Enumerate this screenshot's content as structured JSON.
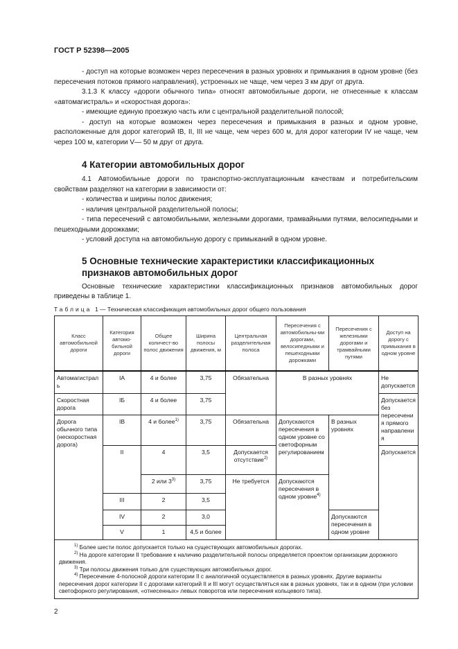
{
  "header": "ГОСТ Р 52398—2005",
  "paragraphs": [
    "- доступ на которые возможен через пересечения в разных уровнях и примыкания в одном уровне (без пересечения потоков прямого направления), устроенных не чаще, чем через 3 км друг от друга.",
    "3.1.3  К классу «дороги обычного типа» относят автомобильные дороги, не отнесенные к классам «автомагистраль» и «скоростная дорога»:",
    "- имеющие единую проезжую часть или с центральной разделительной полосой;",
    "- доступ на которые возможен через пересечения и примыкания в разных и одном уровне, расположенные для дорог категорий IB, II, III не чаще, чем через 600 м, для дорог категории IV не чаще, чем через 100 м, категории V— 50 м друг от друга."
  ],
  "section4": {
    "heading": "4  Категории автомобильных дорог",
    "paragraphs": [
      "4.1 Автомобильные дороги по транспортно-эксплуатационным качествам и потребительским свойствам разделяют на категории в зависимости от:",
      "- количества и ширины полос движения;",
      "- наличия центральной разделительной полосы;",
      "- типа пересечений с автомобильными, железными дорогами, трамвайными путями, велосипедными и пешеходными дорожками;",
      "- условий доступа на автомобильную дорогу с примыканий в одном уровне."
    ]
  },
  "section5": {
    "heading": "5  Основные технические характеристики классификационных признаков автомобильных дорог",
    "paragraph": "Основные технические характеристики классификационных признаков автомобильных дорог приведены в таблице 1."
  },
  "table": {
    "caption_label": "Таблица",
    "caption_text": "1 — Техническая классификация автомобильных дорог общего пользования",
    "headers": [
      "Класс автомобильной дороги",
      "Категория автомо-бильной дороги",
      "Общее количест-во полос движения",
      "Ширина полосы движения, м",
      "Центральная разделительная полоса",
      "Пересечения с автомобильны-ми дорогами, велосипедными и пешеходными дорожками",
      "Пересечения с железными дорогами и трамвайными путями",
      "Доступ на дорогу с примыкания в одном уровне"
    ],
    "rows": [
      [
        {
          "t": "Автомагистраль",
          "a": "l"
        },
        {
          "t": "IA"
        },
        {
          "t": "4 и более"
        },
        {
          "t": "3,75"
        },
        {
          "t": "Обязательна",
          "rs": 2
        },
        {
          "t": "В разных уровнях",
          "cs": 2,
          "rs": 2
        },
        {
          "t": "Не допускается",
          "a": "l"
        }
      ],
      [
        {
          "t": "Скоростная дорога",
          "a": "l"
        },
        {
          "t": "IБ"
        },
        {
          "t": "4 и более"
        },
        {
          "t": "3,75"
        },
        {
          "t": "Допускается без пересечения прямого направления",
          "a": "l",
          "rs": 2
        }
      ],
      [
        {
          "t": "Дорога обычного типа (нескоростная дорога)",
          "a": "l",
          "rs": 6
        },
        {
          "t": "IB"
        },
        {
          "t": "4 и более",
          "sup": "1)"
        },
        {
          "t": "3,75"
        },
        {
          "t": "Обязательна"
        },
        {
          "t": "Допускаются пересечения в одном уровне со светофорным регулированием",
          "a": "l",
          "rs": 2
        },
        {
          "t": "В разных уровнях",
          "a": "l",
          "rs": 4
        }
      ],
      [
        {
          "t": "II",
          "rs": 2
        },
        {
          "t": "4"
        },
        {
          "t": "3,5"
        },
        {
          "t": "Допускается отсутствие",
          "sup": "2)"
        },
        {
          "t": "Допускается",
          "a": "l",
          "rs": 5
        }
      ],
      [
        {
          "t": "2 или 3",
          "sup": "3)"
        },
        {
          "t": "3,75"
        },
        {
          "t": "Не требуется",
          "rs": 4
        },
        {
          "t": "Допускаются пересечения в одном уровне",
          "sup": "4)",
          "a": "l",
          "rs": 4
        }
      ],
      [
        {
          "t": "III"
        },
        {
          "t": "2"
        },
        {
          "t": "3,5"
        }
      ],
      [
        {
          "t": "IV"
        },
        {
          "t": "2"
        },
        {
          "t": "3,0"
        },
        {
          "t": "Допускаются пересечения в одном уровне",
          "a": "l",
          "rs": 2
        }
      ],
      [
        {
          "t": "V"
        },
        {
          "t": "1"
        },
        {
          "t": "4,5 и более"
        }
      ]
    ],
    "footnotes": [
      {
        "mark": "1)",
        "text": "Более шести полос допускается только на существующих автомобильных дорогах."
      },
      {
        "mark": "2)",
        "text": "На дороге категории II требование к наличию разделительной полосы определяется проектом организации дорожного движения."
      },
      {
        "mark": "3)",
        "text": "Три полосы движения только для существующих автомобильных дорог."
      },
      {
        "mark": "4)",
        "text": "Пересечение 4-полосной дороги категории II с аналогичной осуществляется в разных уровнях. Другие варианты пересечения дорог категории II с дорогами категорий II и III могут осуществляться как в разных уровнях, так и в одном (при условии светофорного регулирования, «отнесенных» левых поворотов или пересечения кольцевого типа)."
      }
    ]
  },
  "page_number": "2"
}
